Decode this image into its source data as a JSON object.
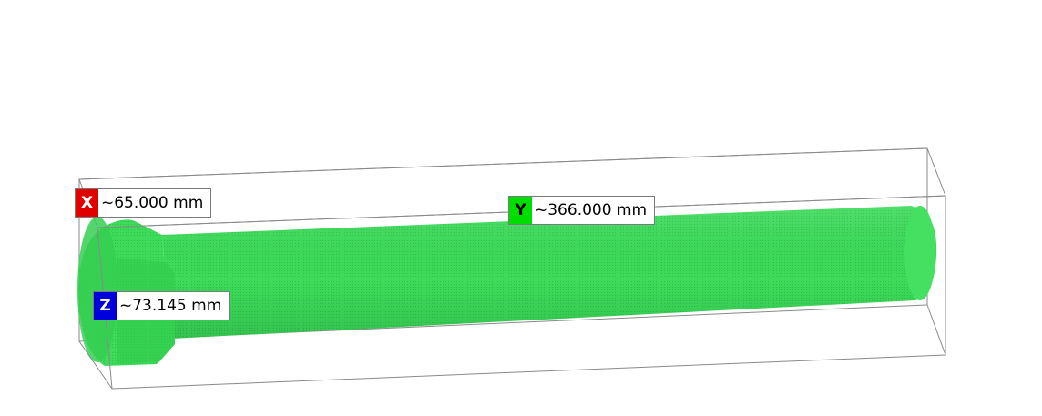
{
  "dimensions": {
    "x": {
      "axis": "X",
      "value": "~65.000 mm",
      "color": "#e00000"
    },
    "y": {
      "axis": "Y",
      "value": "~366.000 mm",
      "color": "#00dd00"
    },
    "z": {
      "axis": "Z",
      "value": "~73.145 mm",
      "color": "#0000dd"
    }
  },
  "model": {
    "color": "#38d957",
    "bounding_box_color": "#8a8a8a"
  }
}
